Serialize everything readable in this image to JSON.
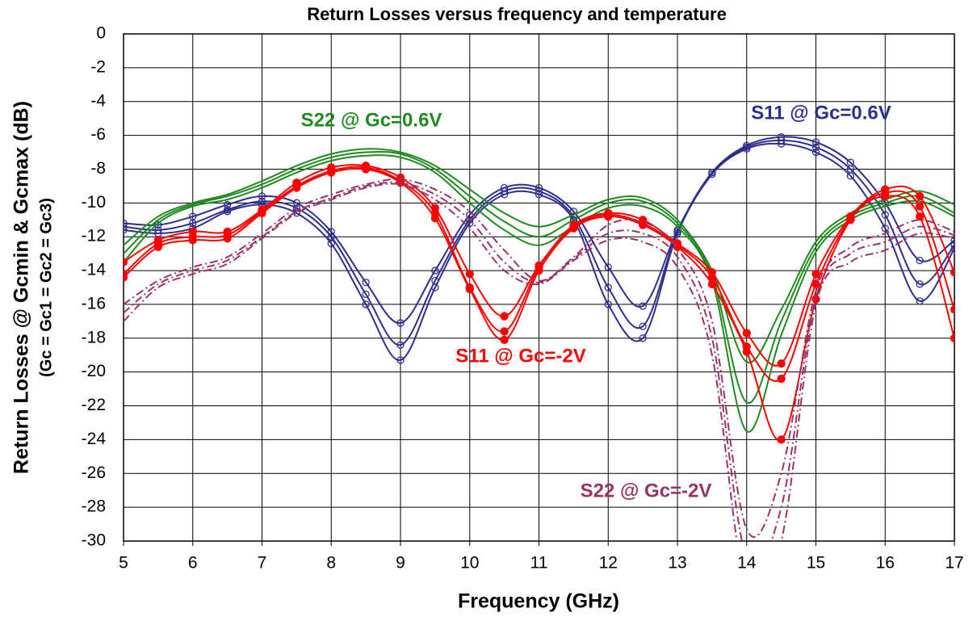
{
  "chart_data": {
    "type": "line",
    "title": "Return Losses versus frequency and temperature",
    "xlabel": "Frequency (GHz)",
    "ylabel": [
      "Return Losses @ Gcmin & Gcmax (dB)",
      "(Gc = Gc1 = Gc2 = Gc3)"
    ],
    "x": [
      5,
      5.5,
      6,
      6.5,
      7,
      7.5,
      8,
      8.5,
      9,
      9.5,
      10,
      10.5,
      11,
      11.5,
      12,
      12.5,
      13,
      13.5,
      14,
      14.5,
      15,
      15.5,
      16,
      16.5,
      17
    ],
    "xlim": [
      5,
      17
    ],
    "xticks": [
      5,
      6,
      7,
      8,
      9,
      10,
      11,
      12,
      13,
      14,
      15,
      16,
      17
    ],
    "ylim": [
      -30,
      0
    ],
    "yticks": [
      0,
      -2,
      -4,
      -6,
      -8,
      -10,
      -12,
      -14,
      -16,
      -18,
      -20,
      -22,
      -24,
      -26,
      -28,
      -30
    ],
    "grid": true,
    "series": [
      {
        "name": "S11 @ Gc=0.6V",
        "color": "#2e2e8f",
        "marker": "open-circle",
        "line_style": "solid",
        "values": [
          [
            -11.2,
            -11.3,
            -10.8,
            -10.1,
            -9.6,
            -10,
            -11.7,
            -14.7,
            -17.1,
            -14,
            -10.7,
            -9.1,
            -9.1,
            -10.5,
            -13.8,
            -16.1,
            -11.6,
            -8.2,
            -6.6,
            -6.1,
            -6.4,
            -7.6,
            -10,
            -13.4,
            -12.2
          ],
          [
            -11.4,
            -11.6,
            -11.2,
            -10.4,
            -9.9,
            -10.3,
            -12,
            -15.4,
            -18.4,
            -14.6,
            -11,
            -9.3,
            -9.3,
            -10.8,
            -15,
            -17.3,
            -11.7,
            -8.2,
            -6.7,
            -6.3,
            -6.7,
            -8,
            -10.7,
            -14.8,
            -12.5
          ],
          [
            -11.6,
            -11.8,
            -11.5,
            -10.5,
            -10.1,
            -10.6,
            -12.4,
            -16,
            -19.3,
            -15,
            -11.2,
            -9.5,
            -9.5,
            -11,
            -16,
            -18,
            -11.8,
            -8.3,
            -6.8,
            -6.5,
            -7,
            -8.4,
            -11.5,
            -15.8,
            -12.7
          ]
        ]
      },
      {
        "name": "S22 @ Gc=0.6V",
        "color": "#1f8a1f",
        "marker": null,
        "line_style": "solid",
        "values": [
          [
            -12.5,
            -10.8,
            -10,
            -9.5,
            -8.7,
            -7.8,
            -7.1,
            -6.8,
            -7,
            -7.8,
            -9.2,
            -10.6,
            -11.4,
            -10.7,
            -9.8,
            -9.7,
            -11,
            -14,
            -19.4,
            -16.3,
            -12.3,
            -10.6,
            -9.8,
            -9.3,
            -10.1
          ],
          [
            -13,
            -11,
            -10.1,
            -9.6,
            -8.9,
            -8,
            -7.3,
            -7,
            -7.1,
            -8,
            -9.6,
            -11.1,
            -12,
            -11,
            -10,
            -9.9,
            -11.2,
            -14.3,
            -21.8,
            -17,
            -12.6,
            -10.8,
            -10,
            -9.6,
            -10.6
          ],
          [
            -13.5,
            -11.2,
            -10.2,
            -9.8,
            -9.1,
            -8.2,
            -7.5,
            -7.2,
            -7.3,
            -8.2,
            -10,
            -11.6,
            -12.5,
            -11.4,
            -10.3,
            -10.2,
            -11.4,
            -14.6,
            -23.5,
            -17.8,
            -12.9,
            -11,
            -10.2,
            -9.9,
            -10.8
          ]
        ]
      },
      {
        "name": "S11 @ Gc=-2V",
        "color": "#ff0000",
        "marker": "filled-circle",
        "line_style": "solid",
        "values": [
          [
            -13.5,
            -12.2,
            -11.7,
            -11.7,
            -10.4,
            -8.8,
            -7.9,
            -7.8,
            -8.5,
            -10.3,
            -14.2,
            -16.7,
            -13.7,
            -11.3,
            -10.6,
            -11,
            -12.4,
            -14.1,
            -17.7,
            -19.5,
            -14.2,
            -10.8,
            -9.2,
            -9.6,
            -14.1
          ],
          [
            -14.2,
            -12.4,
            -12,
            -11.9,
            -10.5,
            -9,
            -8.1,
            -7.9,
            -8.7,
            -10.6,
            -15,
            -17.6,
            -13.8,
            -11.4,
            -10.7,
            -11.2,
            -12.5,
            -14.4,
            -18.5,
            -20.4,
            -14.8,
            -10.9,
            -9.4,
            -10.2,
            -16.3
          ],
          [
            -14.4,
            -12.6,
            -12.2,
            -12.1,
            -10.6,
            -9.1,
            -8.2,
            -8,
            -8.8,
            -10.9,
            -15.1,
            -18.1,
            -14,
            -11.5,
            -10.8,
            -11.3,
            -12.6,
            -14.8,
            -18.8,
            -24,
            -15.7,
            -11,
            -9.6,
            -10.8,
            -18
          ]
        ]
      },
      {
        "name": "S22 @ Gc=-2V",
        "color": "#993366",
        "marker": null,
        "line_style": "dash-dot",
        "values": [
          [
            -16,
            -14.6,
            -13.8,
            -13.2,
            -11.8,
            -10.3,
            -9.5,
            -8.9,
            -8.6,
            -9.2,
            -10.5,
            -12.8,
            -14.6,
            -13.2,
            -11.3,
            -11.1,
            -12.7,
            -17,
            -29.3,
            -26,
            -15.2,
            -12.6,
            -11.8,
            -11,
            -11.7
          ],
          [
            -16.5,
            -14.8,
            -14,
            -13.4,
            -12,
            -10.5,
            -9.7,
            -9,
            -8.8,
            -9.5,
            -11,
            -13.5,
            -14.7,
            -13.3,
            -11.8,
            -11.8,
            -13.2,
            -18,
            -31,
            -28,
            -15.6,
            -13,
            -12.3,
            -11.4,
            -11.9
          ],
          [
            -17,
            -15,
            -14.2,
            -13.6,
            -12.1,
            -10.6,
            -9.8,
            -9.1,
            -8.9,
            -9.8,
            -11.5,
            -14,
            -14.8,
            -13.4,
            -12.2,
            -12.3,
            -13.8,
            -19,
            -33,
            -30,
            -16,
            -13.5,
            -12.8,
            -11.8,
            -12.1
          ]
        ]
      }
    ]
  }
}
